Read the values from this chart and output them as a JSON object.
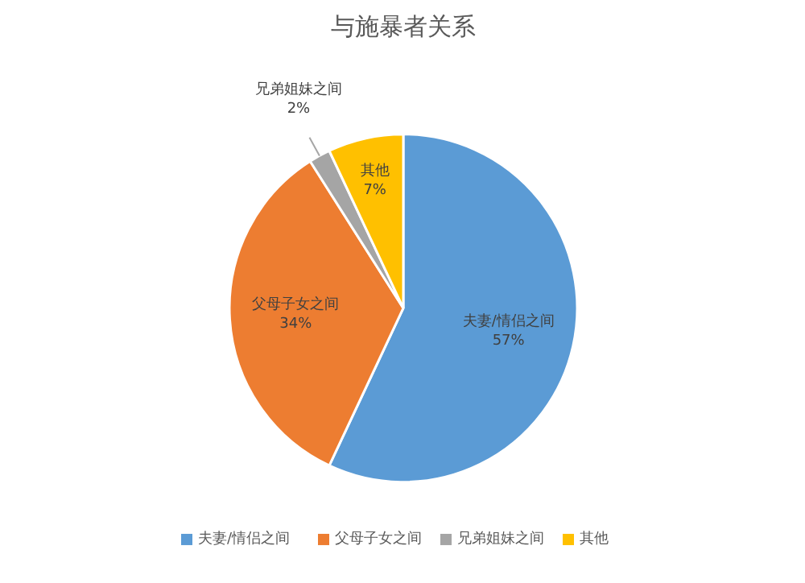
{
  "chart_data": {
    "type": "pie",
    "title": "与施暴者关系",
    "categories": [
      "夫妻/情侣之间",
      "父母子女之间",
      "兄弟姐妹之间",
      "其他"
    ],
    "values": [
      57,
      34,
      2,
      7
    ],
    "colors": [
      "#5b9bd5",
      "#ed7d31",
      "#a5a5a5",
      "#ffc000"
    ],
    "value_labels": [
      "57%",
      "34%",
      "2%",
      "7%"
    ],
    "legend": "bottom"
  }
}
